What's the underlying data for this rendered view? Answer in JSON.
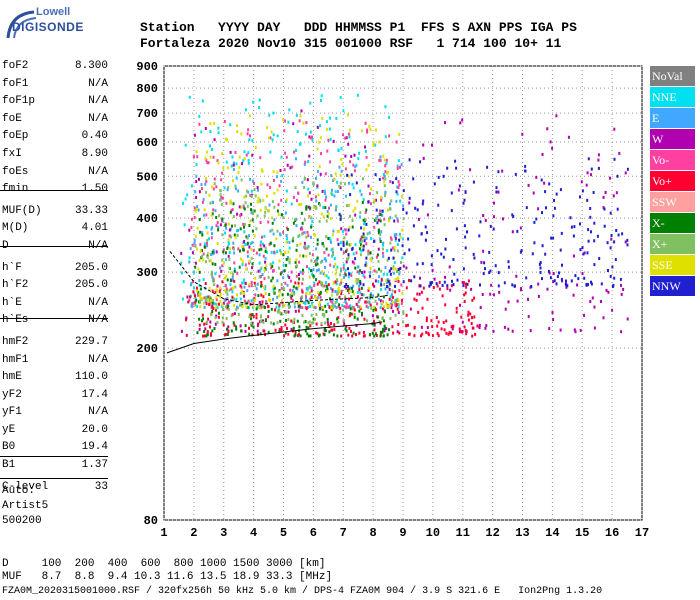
{
  "logo": {
    "top": "Lowell",
    "bottom": "DIGISONDE"
  },
  "header": {
    "line1": "Station   YYYY DAY   DDD HHMMSS P1  FFS S AXN PPS IGA PS",
    "line2": "Fortaleza 2020 Nov10 315 001000 RSF   1 714 100 10+ 11"
  },
  "params": [
    {
      "name": "foF2",
      "value": "8.300"
    },
    {
      "name": "foF1",
      "value": "N/A"
    },
    {
      "name": "foF1p",
      "value": "N/A"
    },
    {
      "name": "foE",
      "value": "N/A"
    },
    {
      "name": "foEp",
      "value": "0.40"
    },
    {
      "name": "fxI",
      "value": "8.90"
    },
    {
      "name": "foEs",
      "value": "N/A"
    },
    {
      "name": "fmin",
      "value": "1.50"
    },
    {
      "name": "MUF(D)",
      "value": "33.33"
    },
    {
      "name": "M(D)",
      "value": "4.01"
    },
    {
      "name": "D",
      "value": "N/A"
    },
    {
      "name": "h`F",
      "value": "205.0"
    },
    {
      "name": "h`F2",
      "value": "205.0"
    },
    {
      "name": "h`E",
      "value": "N/A"
    },
    {
      "name": "h`Es",
      "value": "N/A"
    },
    {
      "name": "hmF2",
      "value": "229.7"
    },
    {
      "name": "hmF1",
      "value": "N/A"
    },
    {
      "name": "hmE",
      "value": "110.0"
    },
    {
      "name": "yF2",
      "value": "17.4"
    },
    {
      "name": "yF1",
      "value": "N/A"
    },
    {
      "name": "yE",
      "value": "20.0"
    },
    {
      "name": "B0",
      "value": "19.4"
    },
    {
      "name": "B1",
      "value": "1.37"
    },
    {
      "name": "C-level",
      "value": "33"
    }
  ],
  "auto": {
    "label": "Auto:",
    "line2": "Artist5",
    "line3": "500200"
  },
  "bottom": {
    "d_line": "D     100  200  400  600  800 1000 1500 3000 [km]",
    "muf_line": "MUF   8.7  8.8  9.4 10.3 11.6 13.5 18.9 33.3 [MHz]"
  },
  "footer": "FZA0M_2020315001000.RSF / 320fx256h 50 kHz 5.0 km / DPS-4 FZA0M 904 / 3.9 S 321.6 E   Ion2Png 1.3.20",
  "legend": [
    {
      "label": "NoVal",
      "color": "#808080",
      "text_color": "#ffffff"
    },
    {
      "label": "NNE",
      "color": "#00e0f0",
      "text_color": "#ffffff"
    },
    {
      "label": "E",
      "color": "#40a8ff",
      "text_color": "#ffffff"
    },
    {
      "label": "W",
      "color": "#b000b0",
      "text_color": "#ffffff"
    },
    {
      "label": "Vo-",
      "color": "#ff40a0",
      "text_color": "#ffffff"
    },
    {
      "label": "Vo+",
      "color": "#ff0030",
      "text_color": "#ffffff"
    },
    {
      "label": "SSW",
      "color": "#ffa0a0",
      "text_color": "#ffffff"
    },
    {
      "label": "X-",
      "color": "#008000",
      "text_color": "#ffffff"
    },
    {
      "label": "X+",
      "color": "#80c060",
      "text_color": "#ffffff"
    },
    {
      "label": "SSE",
      "color": "#e0e000",
      "text_color": "#ffffff"
    },
    {
      "label": "NNW",
      "color": "#2020d0",
      "text_color": "#ffffff"
    }
  ],
  "chart_data": {
    "type": "scatter",
    "xlim": [
      1,
      17
    ],
    "ylim": [
      80,
      900
    ],
    "y_log": true,
    "grid": true,
    "x_ticks": [
      "1",
      "2",
      "3",
      "4",
      "5",
      "6",
      "7",
      "8",
      "9",
      "10",
      "11",
      "12",
      "13",
      "14",
      "15",
      "16",
      "17"
    ],
    "y_ticks": [
      "80",
      "200",
      "300",
      "400",
      "500",
      "600",
      "700",
      "800",
      "900"
    ],
    "series": [
      {
        "name": "NNE",
        "x_range": [
          1.5,
          9.0
        ],
        "y_range": [
          250,
          780
        ]
      },
      {
        "name": "E",
        "x_range": [
          1.8,
          9.0
        ],
        "y_range": [
          250,
          560
        ]
      },
      {
        "name": "W",
        "x_range": [
          1.5,
          16.5
        ],
        "y_range": [
          220,
          720
        ]
      },
      {
        "name": "Vo-",
        "x_range": [
          1.8,
          9.0
        ],
        "y_range": [
          250,
          680
        ]
      },
      {
        "name": "Vo+",
        "x_range": [
          1.7,
          11.5
        ],
        "y_range": [
          215,
          290
        ]
      },
      {
        "name": "X-",
        "x_range": [
          2.0,
          8.5
        ],
        "y_range": [
          215,
          440
        ]
      },
      {
        "name": "X+",
        "x_range": [
          2.0,
          9.0
        ],
        "y_range": [
          230,
          500
        ]
      },
      {
        "name": "SSE",
        "x_range": [
          2.0,
          9.0
        ],
        "y_range": [
          250,
          700
        ]
      },
      {
        "name": "NNW",
        "x_range": [
          6.8,
          16.5
        ],
        "y_range": [
          280,
          560
        ]
      }
    ],
    "trace": {
      "x": [
        1.1,
        2,
        3,
        4,
        5,
        6,
        7,
        8,
        8.3
      ],
      "y": [
        195,
        205,
        210,
        214,
        218,
        222,
        225,
        228,
        230
      ]
    },
    "trace2": {
      "x": [
        1.2,
        2,
        3,
        4,
        5,
        6,
        7,
        8,
        8.5
      ],
      "y": [
        335,
        285,
        260,
        252,
        255,
        258,
        260,
        262,
        265
      ]
    }
  }
}
